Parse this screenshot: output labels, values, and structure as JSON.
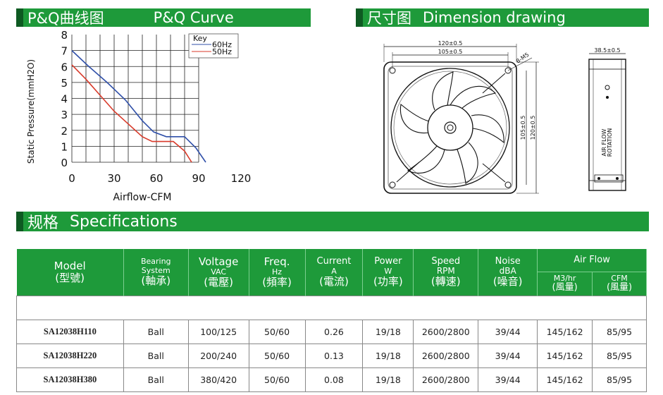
{
  "headers": {
    "pq": {
      "cn": "P&Q曲线图",
      "en": "P&Q Curve"
    },
    "dimension": {
      "cn": "尺寸图",
      "en": "Dimension drawing"
    },
    "spec": {
      "cn": "规格",
      "en": "Specifications"
    }
  },
  "chart_data": {
    "type": "line",
    "xlabel": "Airflow-CFM",
    "ylabel": "Static Pressure(mmH2O)",
    "xlim": [
      0,
      120
    ],
    "ylim": [
      0,
      8
    ],
    "xticks": [
      "0",
      "30",
      "60",
      "90",
      "120"
    ],
    "yticks": [
      "0",
      "1",
      "2",
      "3",
      "4",
      "5",
      "6",
      "7",
      "8"
    ],
    "grid": true,
    "legend": {
      "title": "Key",
      "placement": "top-right"
    },
    "series": [
      {
        "name": "60Hz",
        "color": "#2f4fa8",
        "x": [
          0,
          12,
          25,
          38,
          50,
          58,
          67,
          80,
          88,
          95
        ],
        "y": [
          7.0,
          6.0,
          5.0,
          3.9,
          2.6,
          1.9,
          1.6,
          1.6,
          0.9,
          0.0
        ]
      },
      {
        "name": "50Hz",
        "color": "#d83a2a",
        "x": [
          0,
          10,
          20,
          30,
          40,
          50,
          57,
          72,
          80,
          85
        ],
        "y": [
          6.1,
          5.2,
          4.2,
          3.2,
          2.4,
          1.6,
          1.3,
          1.3,
          0.7,
          0.0
        ]
      }
    ]
  },
  "dimensions": {
    "overall_width": "120±0.5",
    "hole_spacing": "105±0.5",
    "screw": "8-M5",
    "hole_spacing_v": "105±0.5",
    "overall_height": "120±0.5",
    "depth": "38.5±0.5",
    "airflow_label_1": "AIR FLOW",
    "airflow_label_2": "ROTATION"
  },
  "table": {
    "headers": {
      "model": {
        "en": "Model",
        "cn": "(型號)"
      },
      "bearing": {
        "en": "Bearing System",
        "cn": "(軸承)"
      },
      "voltage": {
        "en": "Voltage",
        "unit": "VAC",
        "cn": "(電壓)"
      },
      "freq": {
        "en": "Freq.",
        "unit": "Hz",
        "cn": "(頻率)"
      },
      "current": {
        "en": "Current",
        "unit": "A",
        "cn": "(電流)"
      },
      "power": {
        "en": "Power",
        "unit": "W",
        "cn": "(功率)"
      },
      "speed": {
        "en": "Speed",
        "unit": "RPM",
        "cn": "(轉速)"
      },
      "noise": {
        "en": "Noise",
        "unit": "dBA",
        "cn": "(噪音)"
      },
      "airflow": {
        "en": "Air Flow"
      },
      "m3hr": {
        "unit": "M3/hr",
        "cn": "(風量)"
      },
      "cfm": {
        "unit": "CFM",
        "cn": "(風量)"
      }
    },
    "rows": [
      {
        "model": "SA12038H110",
        "bearing": "Ball",
        "voltage": "100/125",
        "freq": "50/60",
        "current": "0.26",
        "power": "19/18",
        "speed": "2600/2800",
        "noise": "39/44",
        "m3hr": "145/162",
        "cfm": "85/95"
      },
      {
        "model": "SA12038H220",
        "bearing": "Ball",
        "voltage": "200/240",
        "freq": "50/60",
        "current": "0.13",
        "power": "19/18",
        "speed": "2600/2800",
        "noise": "39/44",
        "m3hr": "145/162",
        "cfm": "85/95"
      },
      {
        "model": "SA12038H380",
        "bearing": "Ball",
        "voltage": "380/420",
        "freq": "50/60",
        "current": "0.08",
        "power": "19/18",
        "speed": "2600/2800",
        "noise": "39/44",
        "m3hr": "145/162",
        "cfm": "85/95"
      }
    ]
  }
}
